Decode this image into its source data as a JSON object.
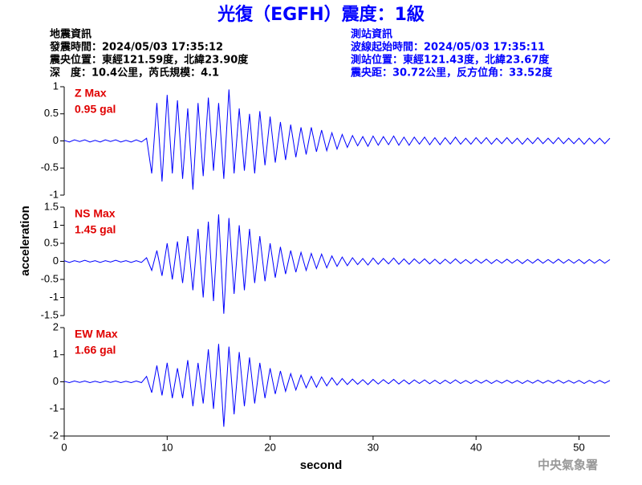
{
  "header": {
    "title": "光復（EGFH）震度：1級",
    "event_info": [
      "地震資訊",
      "發震時間：2024/05/03 17:35:12",
      "震央位置：東經121.59度，北緯23.90度",
      "深　度：10.4公里，芮氏規模：4.1"
    ],
    "station_info": [
      "測站資訊",
      "波線起始時間：2024/05/03 17:35:11",
      "測站位置：東經121.43度，北緯23.67度",
      "震央距：30.72公里，反方位角：33.52度"
    ],
    "footer": "中央氣象署"
  },
  "chart_data": [
    {
      "type": "line",
      "annotations": [
        "Z Max",
        "0.95 gal"
      ],
      "color": "#0000ff",
      "annotation_color": "#e00000",
      "xlim": [
        0,
        53
      ],
      "ylim": [
        -1,
        1
      ],
      "yticks": [
        -1,
        -0.5,
        0,
        0.5,
        1
      ],
      "x": [
        0,
        0.5,
        1,
        1.5,
        2,
        2.5,
        3,
        3.5,
        4,
        4.5,
        5,
        5.5,
        6,
        6.5,
        7,
        7.5,
        8,
        8.5,
        9,
        9.5,
        10,
        10.5,
        11,
        11.5,
        12,
        12.5,
        13,
        13.5,
        14,
        14.5,
        15,
        15.5,
        16,
        16.5,
        17,
        17.5,
        18,
        18.5,
        19,
        19.5,
        20,
        20.5,
        21,
        21.5,
        22,
        22.5,
        23,
        23.5,
        24,
        24.5,
        25,
        25.5,
        26,
        26.5,
        27,
        27.5,
        28,
        28.5,
        29,
        29.5,
        30,
        30.5,
        31,
        31.5,
        32,
        32.5,
        33,
        33.5,
        34,
        34.5,
        35,
        35.5,
        36,
        36.5,
        37,
        37.5,
        38,
        38.5,
        39,
        39.5,
        40,
        40.5,
        41,
        41.5,
        42,
        42.5,
        43,
        43.5,
        44,
        44.5,
        45,
        45.5,
        46,
        46.5,
        47,
        47.5,
        48,
        48.5,
        49,
        49.5,
        50,
        50.5,
        51,
        51.5,
        52,
        52.5,
        53
      ],
      "values": [
        0.01,
        -0.02,
        0.02,
        -0.01,
        0.02,
        -0.02,
        0.01,
        -0.02,
        0.02,
        -0.01,
        0.02,
        -0.02,
        0.01,
        -0.02,
        0.02,
        -0.02,
        0.05,
        -0.6,
        0.7,
        -0.75,
        0.85,
        -0.6,
        0.75,
        -0.7,
        0.6,
        -0.9,
        0.7,
        -0.65,
        0.8,
        -0.55,
        0.7,
        -0.7,
        0.95,
        -0.6,
        0.6,
        -0.55,
        0.5,
        -0.6,
        0.55,
        -0.45,
        0.45,
        -0.4,
        0.35,
        -0.35,
        0.3,
        -0.3,
        0.25,
        -0.25,
        0.25,
        -0.2,
        0.2,
        -0.18,
        0.15,
        -0.15,
        0.12,
        -0.12,
        0.1,
        -0.09,
        0.08,
        -0.1,
        0.09,
        -0.08,
        0.08,
        -0.07,
        0.09,
        -0.08,
        0.07,
        -0.08,
        0.07,
        -0.06,
        0.07,
        -0.07,
        0.06,
        -0.07,
        0.06,
        -0.06,
        0.07,
        -0.06,
        0.05,
        -0.06,
        0.06,
        -0.05,
        0.06,
        -0.06,
        0.05,
        -0.05,
        0.06,
        -0.05,
        0.05,
        -0.06,
        0.05,
        -0.05,
        0.06,
        -0.05,
        0.05,
        -0.05,
        0.06,
        -0.05,
        0.05,
        -0.05,
        0.05,
        -0.06,
        0.05,
        -0.05,
        0.05,
        -0.05,
        0.05
      ]
    },
    {
      "type": "line",
      "annotations": [
        "NS Max",
        "1.45 gal"
      ],
      "color": "#0000ff",
      "annotation_color": "#e00000",
      "ylabel": "acceleration",
      "xlim": [
        0,
        53
      ],
      "ylim": [
        -1.5,
        1.5
      ],
      "yticks": [
        -1.5,
        -1,
        -0.5,
        0,
        0.5,
        1,
        1.5
      ],
      "x": [
        0,
        0.5,
        1,
        1.5,
        2,
        2.5,
        3,
        3.5,
        4,
        4.5,
        5,
        5.5,
        6,
        6.5,
        7,
        7.5,
        8,
        8.5,
        9,
        9.5,
        10,
        10.5,
        11,
        11.5,
        12,
        12.5,
        13,
        13.5,
        14,
        14.5,
        15,
        15.5,
        16,
        16.5,
        17,
        17.5,
        18,
        18.5,
        19,
        19.5,
        20,
        20.5,
        21,
        21.5,
        22,
        22.5,
        23,
        23.5,
        24,
        24.5,
        25,
        25.5,
        26,
        26.5,
        27,
        27.5,
        28,
        28.5,
        29,
        29.5,
        30,
        30.5,
        31,
        31.5,
        32,
        32.5,
        33,
        33.5,
        34,
        34.5,
        35,
        35.5,
        36,
        36.5,
        37,
        37.5,
        38,
        38.5,
        39,
        39.5,
        40,
        40.5,
        41,
        41.5,
        42,
        42.5,
        43,
        43.5,
        44,
        44.5,
        45,
        45.5,
        46,
        46.5,
        47,
        47.5,
        48,
        48.5,
        49,
        49.5,
        50,
        50.5,
        51,
        51.5,
        52,
        52.5,
        53
      ],
      "values": [
        0.02,
        -0.03,
        0.02,
        -0.02,
        0.03,
        -0.02,
        0.02,
        -0.03,
        0.02,
        -0.02,
        0.03,
        -0.02,
        0.02,
        -0.03,
        0.02,
        -0.03,
        0.1,
        -0.25,
        0.3,
        -0.4,
        0.5,
        -0.5,
        0.55,
        -0.6,
        0.7,
        -0.8,
        0.9,
        -1.0,
        1.1,
        -1.1,
        1.3,
        -1.45,
        1.2,
        -0.9,
        1.0,
        -0.8,
        0.9,
        -0.6,
        0.7,
        -0.55,
        0.5,
        -0.45,
        0.4,
        -0.35,
        0.3,
        -0.3,
        0.25,
        -0.25,
        0.22,
        -0.2,
        0.2,
        -0.18,
        0.15,
        -0.14,
        0.12,
        -0.12,
        0.1,
        -0.09,
        0.08,
        -0.1,
        0.09,
        -0.08,
        0.08,
        -0.07,
        0.09,
        -0.08,
        0.07,
        -0.08,
        0.07,
        -0.06,
        0.07,
        -0.07,
        0.06,
        -0.07,
        0.06,
        -0.06,
        0.07,
        -0.06,
        0.05,
        -0.06,
        0.06,
        -0.05,
        0.06,
        -0.06,
        0.05,
        -0.05,
        0.06,
        -0.05,
        0.05,
        -0.06,
        0.05,
        -0.05,
        0.06,
        -0.05,
        0.05,
        -0.05,
        0.06,
        -0.05,
        0.05,
        -0.05,
        0.05,
        -0.06,
        0.05,
        -0.05,
        0.05,
        -0.05,
        0.05
      ]
    },
    {
      "type": "line",
      "annotations": [
        "EW Max",
        "1.66 gal"
      ],
      "color": "#0000ff",
      "annotation_color": "#e00000",
      "xlabel": "second",
      "xlim": [
        0,
        53
      ],
      "xticks": [
        0,
        10,
        20,
        30,
        40,
        50
      ],
      "ylim": [
        -2,
        2
      ],
      "yticks": [
        -2,
        -1,
        0,
        1,
        2
      ],
      "x": [
        0,
        0.5,
        1,
        1.5,
        2,
        2.5,
        3,
        3.5,
        4,
        4.5,
        5,
        5.5,
        6,
        6.5,
        7,
        7.5,
        8,
        8.5,
        9,
        9.5,
        10,
        10.5,
        11,
        11.5,
        12,
        12.5,
        13,
        13.5,
        14,
        14.5,
        15,
        15.5,
        16,
        16.5,
        17,
        17.5,
        18,
        18.5,
        19,
        19.5,
        20,
        20.5,
        21,
        21.5,
        22,
        22.5,
        23,
        23.5,
        24,
        24.5,
        25,
        25.5,
        26,
        26.5,
        27,
        27.5,
        28,
        28.5,
        29,
        29.5,
        30,
        30.5,
        31,
        31.5,
        32,
        32.5,
        33,
        33.5,
        34,
        34.5,
        35,
        35.5,
        36,
        36.5,
        37,
        37.5,
        38,
        38.5,
        39,
        39.5,
        40,
        40.5,
        41,
        41.5,
        42,
        42.5,
        43,
        43.5,
        44,
        44.5,
        45,
        45.5,
        46,
        46.5,
        47,
        47.5,
        48,
        48.5,
        49,
        49.5,
        50,
        50.5,
        51,
        51.5,
        52,
        52.5,
        53
      ],
      "values": [
        0.02,
        -0.03,
        0.03,
        -0.02,
        0.03,
        -0.03,
        0.02,
        -0.03,
        0.03,
        -0.02,
        0.03,
        -0.03,
        0.02,
        -0.03,
        0.03,
        -0.03,
        0.2,
        -0.4,
        0.6,
        -0.5,
        0.7,
        -0.6,
        0.5,
        -0.6,
        0.8,
        -0.9,
        0.7,
        -0.8,
        1.2,
        -1.0,
        1.4,
        -1.66,
        1.3,
        -1.2,
        1.1,
        -0.9,
        0.9,
        -0.8,
        0.7,
        -0.6,
        0.5,
        -0.45,
        0.4,
        -0.35,
        0.3,
        -0.3,
        0.25,
        -0.22,
        0.2,
        -0.2,
        0.18,
        -0.15,
        0.15,
        -0.12,
        0.12,
        -0.1,
        0.1,
        -0.09,
        0.08,
        -0.1,
        0.09,
        -0.08,
        0.08,
        -0.07,
        0.09,
        -0.08,
        0.07,
        -0.08,
        0.07,
        -0.06,
        0.07,
        -0.07,
        0.06,
        -0.07,
        0.06,
        -0.06,
        0.07,
        -0.06,
        0.05,
        -0.06,
        0.06,
        -0.05,
        0.06,
        -0.06,
        0.05,
        -0.05,
        0.06,
        -0.05,
        0.05,
        -0.06,
        0.05,
        -0.05,
        0.06,
        -0.05,
        0.05,
        -0.05,
        0.06,
        -0.05,
        0.05,
        -0.05,
        0.05,
        -0.06,
        0.05,
        -0.05,
        0.05,
        -0.05,
        0.05
      ]
    }
  ]
}
